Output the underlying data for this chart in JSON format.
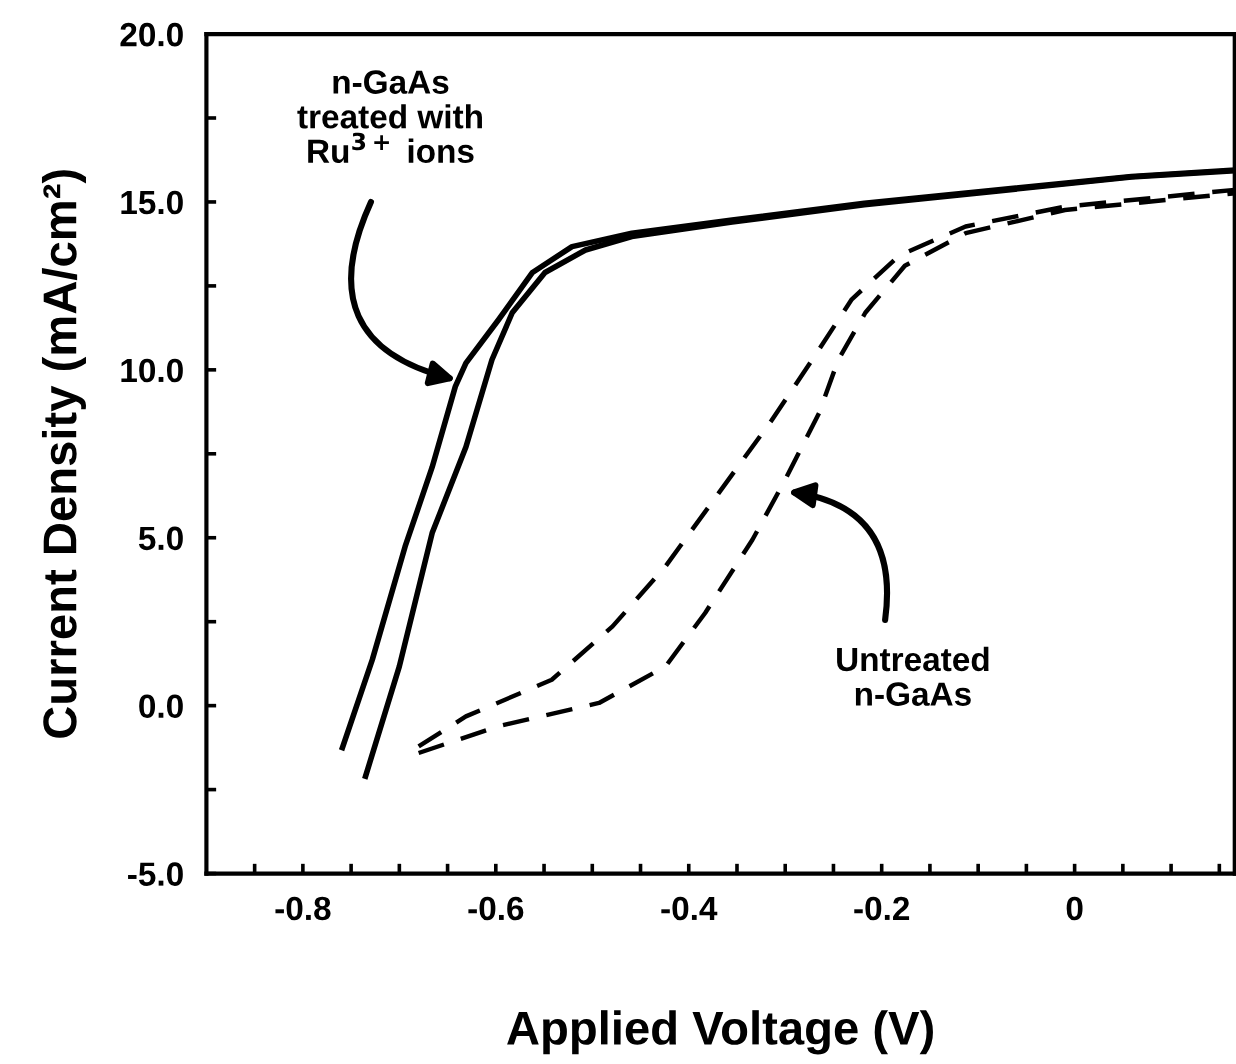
{
  "chart_data": {
    "type": "line",
    "xlabel": "Applied Voltage (V)",
    "ylabel": "Current Density (mA/cm²)",
    "xlim": [
      -0.9,
      0.166
    ],
    "ylim": [
      -5,
      20
    ],
    "xticks": [
      {
        "value": -0.85,
        "label": null
      },
      -0.8,
      {
        "value": -0.75,
        "label": null
      },
      {
        "value": -0.7,
        "label": null
      },
      {
        "value": -0.65,
        "label": null
      },
      -0.6,
      {
        "value": -0.55,
        "label": null
      },
      {
        "value": -0.5,
        "label": null
      },
      {
        "value": -0.45,
        "label": null
      },
      -0.4,
      {
        "value": -0.35,
        "label": null
      },
      {
        "value": -0.3,
        "label": null
      },
      {
        "value": -0.25,
        "label": null
      },
      -0.2,
      {
        "value": -0.15,
        "label": null
      },
      {
        "value": -0.1,
        "label": null
      },
      {
        "value": -0.05,
        "label": null
      },
      0,
      {
        "value": 0.05,
        "label": null
      },
      {
        "value": 0.1,
        "label": null
      },
      {
        "value": 0.15,
        "label": null
      }
    ],
    "yticks": [
      {
        "value": -5,
        "label": "-5.0"
      },
      {
        "value": -2.5,
        "label": null
      },
      {
        "value": 0,
        "label": "0.0"
      },
      {
        "value": 2.5,
        "label": null
      },
      {
        "value": 5,
        "label": "5.0"
      },
      {
        "value": 7.5,
        "label": null
      },
      {
        "value": 10,
        "label": "10.0"
      },
      {
        "value": 12.5,
        "label": null
      },
      {
        "value": 15,
        "label": "15.0"
      },
      {
        "value": 17.5,
        "label": null
      },
      {
        "value": 20,
        "label": "20.0"
      }
    ],
    "grid": false,
    "legend": false,
    "marker": "none",
    "series": [
      {
        "color": "#000000",
        "line_style": "solid",
        "x": [
          -0.759,
          -0.728,
          -0.694,
          -0.666,
          -0.642,
          -0.631,
          -0.597,
          -0.562,
          -0.521,
          -0.459,
          -0.355,
          -0.218,
          -0.079,
          0.059,
          0.166
        ],
        "values": [
          -1.25,
          1.37,
          4.74,
          7.1,
          9.5,
          10.2,
          11.5,
          12.9,
          13.67,
          14.07,
          14.46,
          14.96,
          15.36,
          15.76,
          15.95
        ]
      },
      {
        "color": "#000000",
        "line_style": "solid",
        "x": [
          -0.735,
          -0.7,
          -0.666,
          -0.631,
          -0.604,
          -0.583,
          -0.549,
          -0.507,
          -0.459,
          -0.355,
          -0.218,
          -0.079,
          0.059,
          0.166
        ],
        "values": [
          -2.1,
          1.17,
          5.14,
          7.7,
          10.3,
          11.7,
          12.9,
          13.57,
          13.97,
          14.4,
          14.92,
          15.33,
          15.74,
          15.93
        ]
      },
      {
        "color": "#000000",
        "line_style": "dashed",
        "x": [
          -0.68,
          -0.631,
          -0.542,
          -0.479,
          -0.424,
          -0.369,
          -0.314,
          -0.272,
          -0.231,
          -0.182,
          -0.113,
          -0.01,
          0.166
        ],
        "values": [
          -1.21,
          -0.32,
          0.77,
          2.36,
          4.15,
          6.33,
          8.5,
          10.3,
          12.1,
          13.4,
          14.27,
          14.86,
          15.36
        ]
      },
      {
        "color": "#000000",
        "line_style": "dashed",
        "x": [
          -0.68,
          -0.597,
          -0.493,
          -0.424,
          -0.383,
          -0.334,
          -0.3,
          -0.265,
          -0.245,
          -0.217,
          -0.176,
          -0.113,
          -0.01,
          0.166
        ],
        "values": [
          -1.41,
          -0.61,
          0.08,
          1.17,
          2.76,
          4.94,
          6.73,
          8.71,
          10.3,
          11.7,
          13.1,
          14.07,
          14.76,
          15.26
        ]
      }
    ],
    "annotations": [
      "n-GaAs\ntreated with\nRu$^{3+}$ ions",
      "Untreated\nn-GaAs"
    ]
  }
}
